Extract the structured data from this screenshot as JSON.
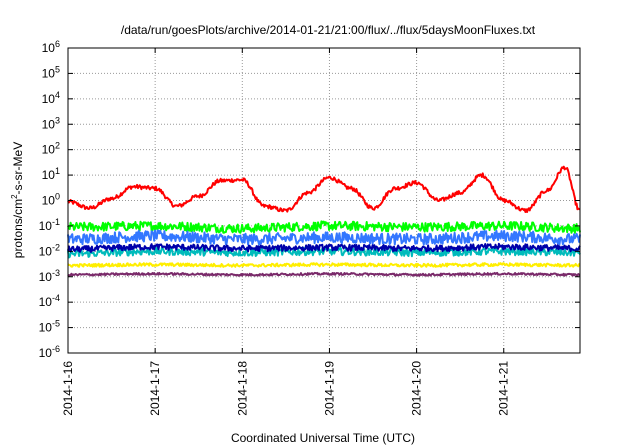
{
  "chart_data": {
    "type": "line",
    "title": "/data/run/goesPlots/archive/2014-01-21/21:00/flux/../flux/5daysMoonFluxes.txt",
    "xlabel": "Coordinated Universal Time (UTC)",
    "ylabel": {
      "prefix": "protons/cm",
      "sup": "2",
      "suffix": "-s-sr-MeV"
    },
    "yscale": "log",
    "ylim": [
      1e-06,
      1000000.0
    ],
    "xlim": [
      "2014-01-16",
      "2014-01-21T21:00"
    ],
    "grid": true,
    "legend": "none",
    "x_ticks": [
      "2014-1-16",
      "2014-1-17",
      "2014-1-18",
      "2014-1-19",
      "2014-1-20",
      "2014-1-21"
    ],
    "y_ticks": [
      {
        "base": "10",
        "exp": "-6"
      },
      {
        "base": "10",
        "exp": "-5"
      },
      {
        "base": "10",
        "exp": "-4"
      },
      {
        "base": "10",
        "exp": "-3"
      },
      {
        "base": "10",
        "exp": "-2"
      },
      {
        "base": "10",
        "exp": "-1"
      },
      {
        "base": "10",
        "exp": "0"
      },
      {
        "base": "10",
        "exp": "1"
      },
      {
        "base": "10",
        "exp": "2"
      },
      {
        "base": "10",
        "exp": "3"
      },
      {
        "base": "10",
        "exp": "4"
      },
      {
        "base": "10",
        "exp": "5"
      },
      {
        "base": "10",
        "exp": "6"
      }
    ],
    "series": [
      {
        "color": "#ff0000",
        "x": [
          0,
          0.25,
          0.5,
          0.75,
          1.0,
          1.25,
          1.5,
          1.75,
          2.0,
          2.25,
          2.5,
          2.75,
          3.0,
          3.25,
          3.5,
          3.75,
          4.0,
          4.25,
          4.5,
          4.75,
          5.0,
          5.25,
          5.5,
          5.7,
          5.875
        ],
        "values": [
          0.9,
          0.5,
          1.2,
          3.5,
          3.0,
          0.6,
          1.5,
          6.0,
          6.5,
          0.6,
          0.4,
          2.0,
          8.0,
          3.0,
          0.5,
          3.0,
          5.0,
          1.0,
          2.0,
          10.0,
          1.0,
          0.4,
          2.5,
          20.0,
          0.4
        ]
      },
      {
        "color": "#00ff00",
        "x": [
          0,
          1,
          2,
          3,
          4,
          5,
          5.875
        ],
        "values": [
          0.09,
          0.1,
          0.08,
          0.1,
          0.09,
          0.1,
          0.08
        ]
      },
      {
        "color": "#3377ff",
        "x": [
          0,
          1,
          2,
          3,
          4,
          5,
          5.875
        ],
        "values": [
          0.03,
          0.04,
          0.03,
          0.035,
          0.03,
          0.04,
          0.03
        ]
      },
      {
        "color": "#00bbbb",
        "x": [
          0,
          1,
          2,
          3,
          4,
          5,
          5.875
        ],
        "values": [
          0.008,
          0.01,
          0.009,
          0.01,
          0.009,
          0.01,
          0.009
        ]
      },
      {
        "color": "#0000aa",
        "x": [
          0,
          1,
          2,
          3,
          4,
          5,
          5.875
        ],
        "values": [
          0.012,
          0.015,
          0.013,
          0.014,
          0.013,
          0.015,
          0.013
        ]
      },
      {
        "color": "#ffee00",
        "x": [
          0,
          1,
          2,
          3,
          4,
          5,
          5.875
        ],
        "values": [
          0.0028,
          0.003,
          0.0028,
          0.003,
          0.0028,
          0.003,
          0.0028
        ]
      },
      {
        "color": "#7a2a6a",
        "x": [
          0,
          1,
          2,
          3,
          4,
          5,
          5.875
        ],
        "values": [
          0.0012,
          0.0013,
          0.0012,
          0.0013,
          0.0012,
          0.0013,
          0.0012
        ]
      }
    ]
  }
}
